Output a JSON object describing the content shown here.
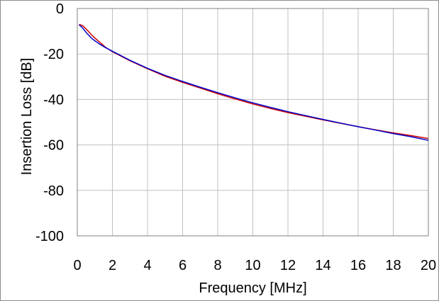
{
  "chart_data": {
    "type": "line",
    "xlabel": "Frequency [MHz]",
    "ylabel": "Insertion Loss [dB]",
    "xlim": [
      0,
      20
    ],
    "ylim": [
      -100,
      0
    ],
    "x_ticks": [
      0,
      2,
      4,
      6,
      8,
      10,
      12,
      14,
      16,
      18,
      20
    ],
    "y_ticks": [
      0,
      -20,
      -40,
      -60,
      -80,
      -100
    ],
    "grid": true,
    "legend": "none",
    "series": [
      {
        "color": "#cc0000",
        "x": [
          0.1,
          0.3,
          0.5,
          0.8,
          1.0,
          1.3,
          1.6,
          2.0,
          3,
          4,
          5,
          6,
          7,
          8,
          9,
          10,
          11,
          12,
          13,
          14,
          15,
          16,
          17,
          18,
          19,
          20
        ],
        "y": [
          -7,
          -7.5,
          -9,
          -11.5,
          -13,
          -15,
          -17,
          -19,
          -23,
          -26.5,
          -29.8,
          -32.5,
          -35,
          -37.5,
          -39.8,
          -42,
          -44,
          -45.8,
          -47.4,
          -49,
          -50.5,
          -52,
          -53.4,
          -54.7,
          -55.9,
          -57.2
        ]
      },
      {
        "color": "#0000cc",
        "x": [
          0.1,
          0.3,
          0.5,
          0.8,
          1.0,
          1.3,
          1.6,
          2.0,
          3,
          4,
          5,
          6,
          7,
          8,
          9,
          10,
          11,
          12,
          13,
          14,
          15,
          16,
          17,
          18,
          19,
          20
        ],
        "y": [
          -7.2,
          -8.5,
          -10.5,
          -13,
          -14.2,
          -15.8,
          -17.2,
          -18.8,
          -22.8,
          -26.3,
          -29.4,
          -32.1,
          -34.6,
          -37,
          -39.3,
          -41.5,
          -43.5,
          -45.4,
          -47.1,
          -48.8,
          -50.4,
          -52,
          -53.5,
          -55,
          -56.4,
          -58
        ]
      }
    ]
  }
}
